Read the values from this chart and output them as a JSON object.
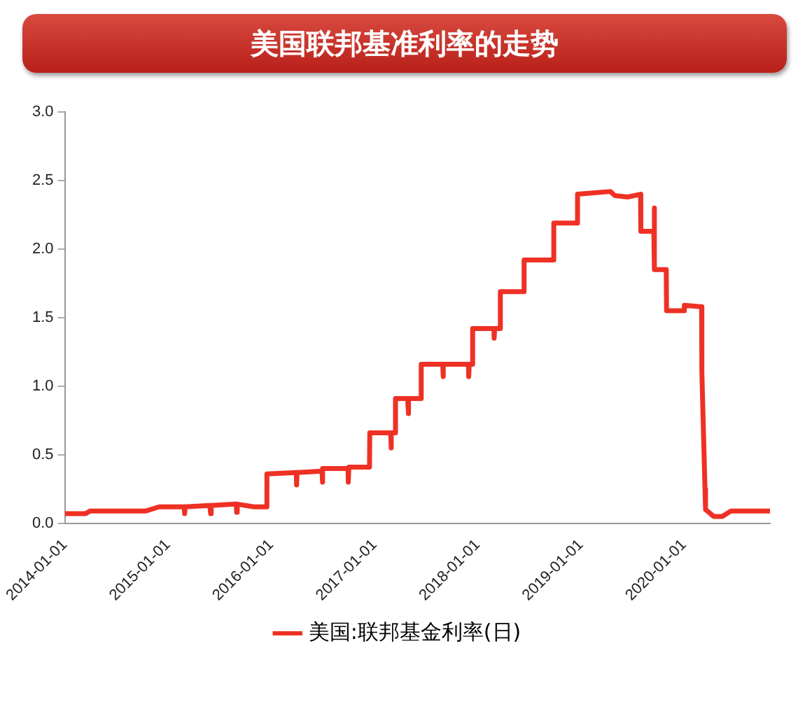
{
  "chart_data": {
    "type": "line",
    "title": "美国联邦基准利率的走势",
    "x": [
      "2014-01-01",
      "2014-03-15",
      "2014-04-01",
      "2014-07-01",
      "2014-10-15",
      "2014-12-01",
      "2015-01-01",
      "2015-02-27",
      "2015-03-01",
      "2015-03-03",
      "2015-05-29",
      "2015-06-01",
      "2015-06-03",
      "2015-08-31",
      "2015-09-01",
      "2015-09-03",
      "2015-11-01",
      "2015-12-16",
      "2015-12-17",
      "2016-03-30",
      "2016-03-31",
      "2016-04-02",
      "2016-06-29",
      "2016-06-30",
      "2016-07-02",
      "2016-09-29",
      "2016-09-30",
      "2016-10-02",
      "2016-12-14",
      "2016-12-15",
      "2017-02-27",
      "2017-02-28",
      "2017-03-02",
      "2017-03-15",
      "2017-03-16",
      "2017-04-28",
      "2017-04-30",
      "2017-05-02",
      "2017-06-14",
      "2017-06-15",
      "2017-08-30",
      "2017-08-31",
      "2017-09-02",
      "2017-11-29",
      "2017-11-30",
      "2017-12-02",
      "2017-12-13",
      "2017-12-14",
      "2018-02-27",
      "2018-02-28",
      "2018-03-02",
      "2018-03-21",
      "2018-03-22",
      "2018-06-13",
      "2018-06-14",
      "2018-09-26",
      "2018-09-27",
      "2018-12-19",
      "2018-12-20",
      "2019-04-15",
      "2019-05-01",
      "2019-06-15",
      "2019-07-31",
      "2019-08-01",
      "2019-09-16",
      "2019-09-17",
      "2019-09-18",
      "2019-09-19",
      "2019-10-30",
      "2019-10-31",
      "2019-12-31",
      "2020-01-02",
      "2020-02-28",
      "2020-03-03",
      "2020-03-04",
      "2020-03-15",
      "2020-03-17",
      "2020-04-15",
      "2020-05-15",
      "2020-06-15",
      "2020-10-31"
    ],
    "series": [
      {
        "name": "美国:联邦基金利率(日)",
        "color": "#ee3124",
        "values": [
          0.07,
          0.07,
          0.09,
          0.09,
          0.09,
          0.12,
          0.12,
          0.12,
          0.07,
          0.12,
          0.13,
          0.07,
          0.13,
          0.14,
          0.08,
          0.14,
          0.12,
          0.12,
          0.36,
          0.37,
          0.28,
          0.37,
          0.38,
          0.3,
          0.4,
          0.4,
          0.3,
          0.41,
          0.41,
          0.66,
          0.66,
          0.55,
          0.66,
          0.66,
          0.91,
          0.91,
          0.8,
          0.91,
          0.91,
          1.16,
          1.16,
          1.07,
          1.16,
          1.16,
          1.07,
          1.16,
          1.16,
          1.42,
          1.42,
          1.35,
          1.42,
          1.42,
          1.69,
          1.69,
          1.92,
          1.92,
          2.19,
          2.19,
          2.4,
          2.42,
          2.39,
          2.38,
          2.4,
          2.13,
          2.13,
          2.3,
          1.85,
          1.85,
          1.85,
          1.55,
          1.55,
          1.59,
          1.58,
          1.58,
          1.1,
          0.25,
          0.1,
          0.05,
          0.05,
          0.09,
          0.09
        ]
      }
    ],
    "xlim": [
      "2014-01-01",
      "2020-10-31"
    ],
    "xticks": [
      "2014-01-01",
      "2015-01-01",
      "2016-01-01",
      "2017-01-01",
      "2018-01-01",
      "2019-01-01",
      "2020-01-01"
    ],
    "ylim": [
      0,
      3
    ],
    "yticks": [
      {
        "value": 0,
        "label": "0.0"
      },
      {
        "value": 0.5,
        "label": "0.5"
      },
      {
        "value": 1,
        "label": "1.0"
      },
      {
        "value": 1.5,
        "label": "1.5"
      },
      {
        "value": 2,
        "label": "2.0"
      },
      {
        "value": 2.5,
        "label": "2.5"
      },
      {
        "value": 3,
        "label": "3.0"
      }
    ],
    "grid": false,
    "legend": "bottom",
    "marker": "none",
    "line_style": "solid"
  }
}
